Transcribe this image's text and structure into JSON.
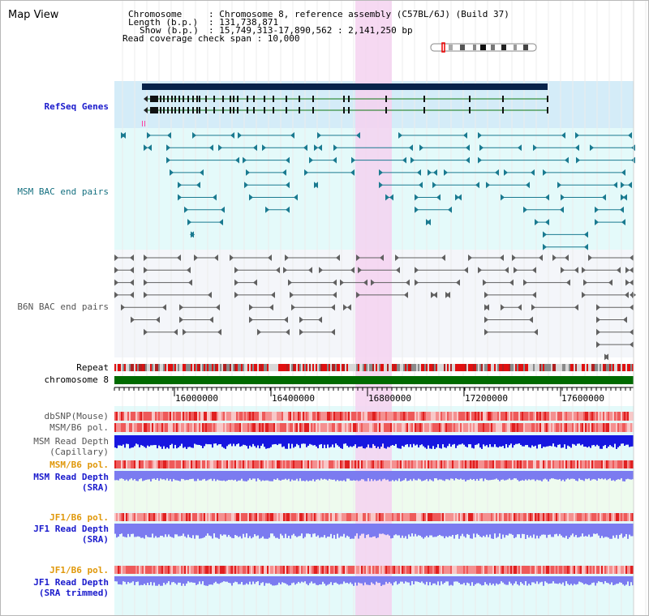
{
  "window": {
    "title": "Map View"
  },
  "info": {
    "chromosome_key": "Chromosome",
    "chromosome_val": ": Chromosome 8, reference assembly (C57BL/6J) (Build 37)",
    "length_key": "Length (b.p.)",
    "length_val": ": 131,738,871",
    "show_key": "Show (b.p.)",
    "show_val": ": 15,749,313-17,890,562 : 2,141,250 bp",
    "coverage": "Read coverage check span : 10,000"
  },
  "tracks": {
    "refseq": "RefSeq Genes",
    "msm_bac": "MSM BAC end pairs",
    "b6n_bac": "B6N BAC end pairs",
    "repeat": "Repeat",
    "chromosome": "chromosome 8",
    "dbsnp": "dbSNP(Mouse)",
    "msm_pol1": "MSM/B6 pol.",
    "msm_depth_cap_1": "MSM Read Depth",
    "msm_depth_cap_2": "(Capillary)",
    "msm_pol2": "MSM/B6 pol.",
    "msm_depth_sra_1": "MSM Read Depth",
    "msm_depth_sra_2": "(SRA)",
    "jf1_pol1": "JF1/B6 pol.",
    "jf1_depth_1": "JF1 Read Depth",
    "jf1_depth_2": "(SRA)",
    "jf1_pol2": "JF1/B6 pol.",
    "jf1_trim_1": "JF1 Read Depth",
    "jf1_trim_2": "(SRA trimmed)"
  },
  "ruler": {
    "ticks": [
      "16000000",
      "16400000",
      "16800000",
      "17200000",
      "17600000"
    ]
  },
  "colors": {
    "refseq_bg": "#d4ecf8",
    "bac_bg": "#e4fafa",
    "highlight": "#f5d2f0",
    "gene_dark": "#07234a",
    "msm_teal": "#1a7a90",
    "b6n_gray": "#606060",
    "chromosome_green": "#006a00",
    "depth_blue": "#1717e0",
    "depth_violet": "#7b7bf0",
    "pol_red": "#e84040"
  }
}
